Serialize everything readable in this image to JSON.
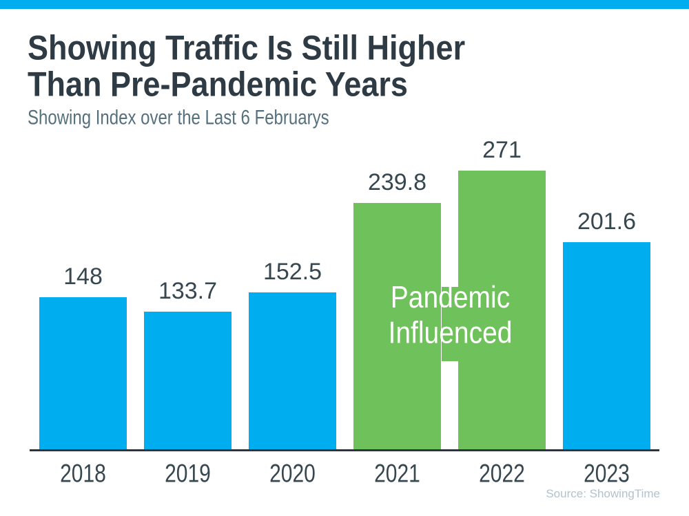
{
  "header": {
    "title_line1": "Showing Traffic Is Still Higher",
    "title_line2": "Than Pre-Pandemic Years",
    "subtitle": "Showing Index over the Last 6 Februarys"
  },
  "chart_data": {
    "type": "bar",
    "title": "Showing Traffic Is Still Higher Than Pre-Pandemic Years",
    "subtitle": "Showing Index over the Last 6 Februarys",
    "categories": [
      "2018",
      "2019",
      "2020",
      "2021",
      "2022",
      "2023"
    ],
    "values": [
      148,
      133.7,
      152.5,
      239.8,
      271,
      201.6
    ],
    "value_labels": [
      "148",
      "133.7",
      "152.5",
      "239.8",
      "271",
      "201.6"
    ],
    "bar_colors": [
      "#00AEEF",
      "#00AEEF",
      "#00AEEF",
      "#6FC25B",
      "#6FC25B",
      "#00AEEF"
    ],
    "highlight_group": {
      "categories": [
        "2021",
        "2022"
      ],
      "label": "Pandemic Influenced",
      "label_lines": [
        "Pandemic",
        "Influenced"
      ],
      "color": "#6FC25B",
      "text_color": "#FFFFFF"
    },
    "xlabel": "",
    "ylabel": "",
    "ylim": [
      0,
      295
    ],
    "grid": false,
    "legend": false,
    "data_labels": true,
    "source": "Source: ShowingTime"
  },
  "footer": {
    "source": "Source: ShowingTime"
  },
  "colors": {
    "accent_blue": "#00AEEF",
    "accent_green": "#6FC25B",
    "title_text": "#2E3B44",
    "subtitle_text": "#54707C",
    "label_text": "#37474F",
    "axis_line": "#2A3540",
    "source_text": "#B4C2CB",
    "background": "#FFFFFF"
  }
}
